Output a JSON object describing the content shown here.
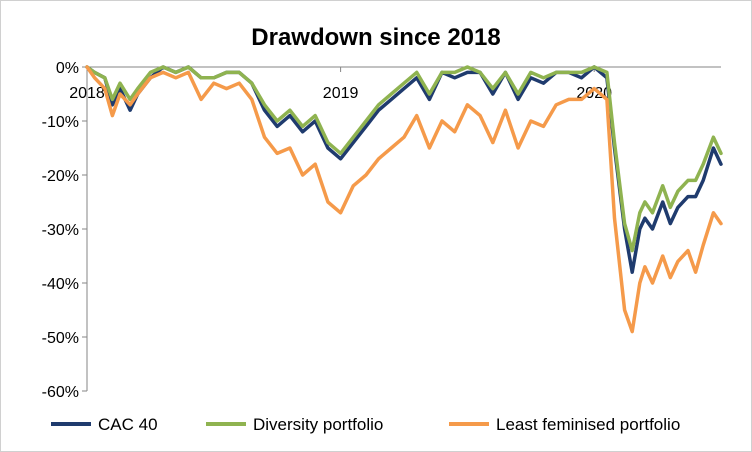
{
  "chart_data": {
    "type": "line",
    "title": "Drawdown since 2018",
    "xlabel": "",
    "ylabel": "",
    "x_range": [
      2018.0,
      2020.5
    ],
    "ylim": [
      -60,
      0
    ],
    "y_ticks": [
      0,
      -10,
      -20,
      -30,
      -40,
      -50,
      -60
    ],
    "y_tick_labels": [
      "0%",
      "-10%",
      "-20%",
      "-30%",
      "-40%",
      "-50%",
      "-60%"
    ],
    "x_ticks": [
      2018.0,
      2019.0,
      2020.0
    ],
    "x_tick_labels": [
      "2018",
      "2019",
      "2020"
    ],
    "grid": false,
    "legend_position": "bottom",
    "series": [
      {
        "name": "CAC 40",
        "color": "#1f3b6e",
        "x": [
          2018.0,
          2018.03,
          2018.07,
          2018.1,
          2018.13,
          2018.17,
          2018.2,
          2018.25,
          2018.3,
          2018.35,
          2018.4,
          2018.45,
          2018.5,
          2018.55,
          2018.6,
          2018.65,
          2018.7,
          2018.75,
          2018.8,
          2018.85,
          2018.9,
          2018.95,
          2019.0,
          2019.05,
          2019.1,
          2019.15,
          2019.2,
          2019.25,
          2019.3,
          2019.35,
          2019.4,
          2019.45,
          2019.5,
          2019.55,
          2019.6,
          2019.65,
          2019.7,
          2019.75,
          2019.8,
          2019.85,
          2019.9,
          2019.95,
          2020.0,
          2020.05,
          2020.08,
          2020.12,
          2020.15,
          2020.18,
          2020.2,
          2020.23,
          2020.27,
          2020.3,
          2020.33,
          2020.37,
          2020.4,
          2020.43,
          2020.47,
          2020.5
        ],
        "values": [
          0,
          -1,
          -2,
          -7,
          -4,
          -8,
          -5,
          -2,
          0,
          -1,
          0,
          -2,
          -2,
          -1,
          -1,
          -3,
          -8,
          -11,
          -9,
          -12,
          -10,
          -15,
          -17,
          -14,
          -11,
          -8,
          -6,
          -4,
          -2,
          -6,
          -1,
          -2,
          -1,
          -1,
          -5,
          -1,
          -6,
          -2,
          -3,
          -1,
          -1,
          -2,
          0,
          -2,
          -15,
          -30,
          -38,
          -30,
          -28,
          -30,
          -25,
          -29,
          -26,
          -24,
          -24,
          -21,
          -15,
          -18
        ]
      },
      {
        "name": "Diversity portfolio",
        "color": "#8fb350",
        "x": [
          2018.0,
          2018.03,
          2018.07,
          2018.1,
          2018.13,
          2018.17,
          2018.2,
          2018.25,
          2018.3,
          2018.35,
          2018.4,
          2018.45,
          2018.5,
          2018.55,
          2018.6,
          2018.65,
          2018.7,
          2018.75,
          2018.8,
          2018.85,
          2018.9,
          2018.95,
          2019.0,
          2019.05,
          2019.1,
          2019.15,
          2019.2,
          2019.25,
          2019.3,
          2019.35,
          2019.4,
          2019.45,
          2019.5,
          2019.55,
          2019.6,
          2019.65,
          2019.7,
          2019.75,
          2019.8,
          2019.85,
          2019.9,
          2019.95,
          2020.0,
          2020.05,
          2020.08,
          2020.12,
          2020.15,
          2020.18,
          2020.2,
          2020.23,
          2020.27,
          2020.3,
          2020.33,
          2020.37,
          2020.4,
          2020.43,
          2020.47,
          2020.5
        ],
        "values": [
          0,
          -1,
          -2,
          -6,
          -3,
          -6,
          -4,
          -1,
          0,
          -1,
          0,
          -2,
          -2,
          -1,
          -1,
          -3,
          -7,
          -10,
          -8,
          -11,
          -9,
          -14,
          -16,
          -13,
          -10,
          -7,
          -5,
          -3,
          -1,
          -5,
          -1,
          -1,
          0,
          -1,
          -4,
          -1,
          -5,
          -1,
          -2,
          -1,
          -1,
          -1,
          0,
          -1,
          -14,
          -29,
          -34,
          -27,
          -25,
          -27,
          -22,
          -26,
          -23,
          -21,
          -21,
          -18,
          -13,
          -16
        ]
      },
      {
        "name": "Least feminised portfolio",
        "color": "#f59a4a",
        "x": [
          2018.0,
          2018.03,
          2018.07,
          2018.1,
          2018.13,
          2018.17,
          2018.2,
          2018.25,
          2018.3,
          2018.35,
          2018.4,
          2018.45,
          2018.5,
          2018.55,
          2018.6,
          2018.65,
          2018.7,
          2018.75,
          2018.8,
          2018.85,
          2018.9,
          2018.95,
          2019.0,
          2019.05,
          2019.1,
          2019.15,
          2019.2,
          2019.25,
          2019.3,
          2019.35,
          2019.4,
          2019.45,
          2019.5,
          2019.55,
          2019.6,
          2019.65,
          2019.7,
          2019.75,
          2019.8,
          2019.85,
          2019.9,
          2019.95,
          2020.0,
          2020.05,
          2020.08,
          2020.12,
          2020.15,
          2020.18,
          2020.2,
          2020.23,
          2020.27,
          2020.3,
          2020.33,
          2020.37,
          2020.4,
          2020.43,
          2020.47,
          2020.5
        ],
        "values": [
          0,
          -2,
          -4,
          -9,
          -5,
          -7,
          -5,
          -2,
          -1,
          -2,
          -1,
          -6,
          -3,
          -4,
          -3,
          -6,
          -13,
          -16,
          -15,
          -20,
          -18,
          -25,
          -27,
          -22,
          -20,
          -17,
          -15,
          -13,
          -9,
          -15,
          -10,
          -12,
          -7,
          -9,
          -14,
          -8,
          -15,
          -10,
          -11,
          -7,
          -6,
          -6,
          -4,
          -6,
          -28,
          -45,
          -49,
          -40,
          -37,
          -40,
          -35,
          -39,
          -36,
          -34,
          -38,
          -33,
          -27,
          -29
        ]
      }
    ]
  }
}
